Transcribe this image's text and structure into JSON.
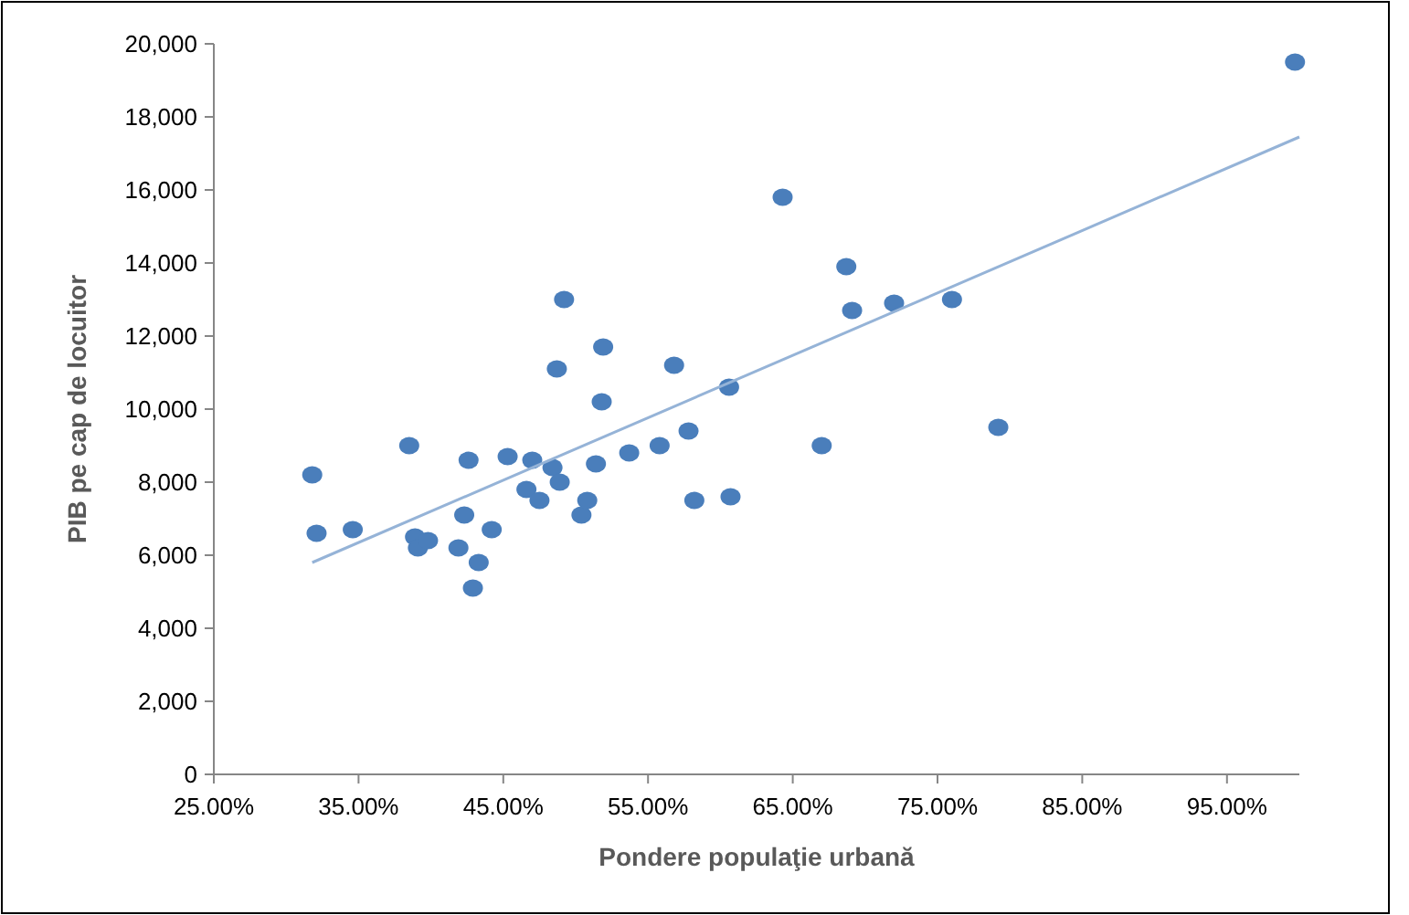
{
  "chart_data": {
    "type": "scatter",
    "xlabel": "Pondere populaţie urbană",
    "ylabel": "PIB pe cap de locuitor",
    "xlim": [
      25,
      100
    ],
    "xticks": [
      {
        "value": 25,
        "label": "25.00%"
      },
      {
        "value": 35,
        "label": "35.00%"
      },
      {
        "value": 45,
        "label": "45.00%"
      },
      {
        "value": 55,
        "label": "55.00%"
      },
      {
        "value": 65,
        "label": "65.00%"
      },
      {
        "value": 75,
        "label": "75.00%"
      },
      {
        "value": 85,
        "label": "85.00%"
      },
      {
        "value": 95,
        "label": "95.00%"
      }
    ],
    "ylim": [
      0,
      20000
    ],
    "yticks": [
      {
        "value": 0,
        "label": "0"
      },
      {
        "value": 2000,
        "label": "2,000"
      },
      {
        "value": 4000,
        "label": "4,000"
      },
      {
        "value": 6000,
        "label": "6,000"
      },
      {
        "value": 8000,
        "label": "8,000"
      },
      {
        "value": 10000,
        "label": "10,000"
      },
      {
        "value": 12000,
        "label": "12,000"
      },
      {
        "value": 14000,
        "label": "14,000"
      },
      {
        "value": 16000,
        "label": "16,000"
      },
      {
        "value": 18000,
        "label": "18,000"
      },
      {
        "value": 20000,
        "label": "20,000"
      }
    ],
    "grid": false,
    "marker": "circle",
    "series": [
      {
        "color": "#4a7ebb",
        "x": [
          31.8,
          32.1,
          34.6,
          38.5,
          38.9,
          39.1,
          39.8,
          41.9,
          42.3,
          42.6,
          42.9,
          43.3,
          44.2,
          45.3,
          46.6,
          47.0,
          47.5,
          48.4,
          48.9,
          48.7,
          49.2,
          50.4,
          50.8,
          51.4,
          51.8,
          51.9,
          53.7,
          55.8,
          56.8,
          57.8,
          58.2,
          60.6,
          60.7,
          64.3,
          67.0,
          68.7,
          69.1,
          72.0,
          76.0,
          79.2,
          99.7
        ],
        "values": [
          8200,
          6600,
          6700,
          9000,
          6500,
          6200,
          6400,
          6200,
          7100,
          8600,
          5100,
          5800,
          6700,
          8700,
          7800,
          8600,
          7500,
          8400,
          8000,
          11100,
          13000,
          7100,
          7500,
          8500,
          10200,
          11700,
          8800,
          9000,
          11200,
          9400,
          7500,
          10600,
          7600,
          15800,
          9000,
          13900,
          12700,
          12900,
          13000,
          9500,
          19500
        ]
      },
      {
        "type": "line",
        "color": "#95b3d7",
        "line_style": "solid",
        "marker": "none",
        "x": [
          31.8,
          100
        ],
        "values": [
          5800,
          17450
        ]
      }
    ]
  }
}
